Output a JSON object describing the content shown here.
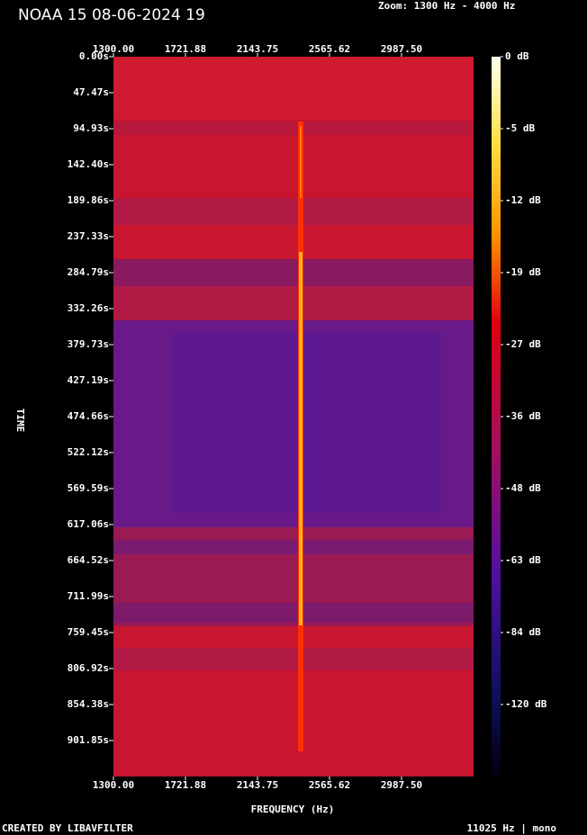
{
  "chart_data": {
    "type": "spectrogram",
    "title": "NOAA 15 08-06-2024 19",
    "zoom_label": "Zoom: 1300 Hz - 4000 Hz",
    "x_label": "FREQUENCY (Hz)",
    "y_label": "TIME",
    "xlim": [
      1300,
      3409.375
    ],
    "xticks": [
      {
        "value": 1300,
        "label": "1300.00"
      },
      {
        "value": 1721.88,
        "label": "1721.88"
      },
      {
        "value": 2143.75,
        "label": "2143.75"
      },
      {
        "value": 2565.62,
        "label": "2565.62"
      },
      {
        "value": 2987.5,
        "label": "2987.50"
      }
    ],
    "ylim": [
      0,
      949.32
    ],
    "yticks": [
      {
        "value": 0,
        "label": "0.00s"
      },
      {
        "value": 47.47,
        "label": "47.47s"
      },
      {
        "value": 94.93,
        "label": "94.93s"
      },
      {
        "value": 142.4,
        "label": "142.40s"
      },
      {
        "value": 189.86,
        "label": "189.86s"
      },
      {
        "value": 237.33,
        "label": "237.33s"
      },
      {
        "value": 284.79,
        "label": "284.79s"
      },
      {
        "value": 332.26,
        "label": "332.26s"
      },
      {
        "value": 379.73,
        "label": "379.73s"
      },
      {
        "value": 427.19,
        "label": "427.19s"
      },
      {
        "value": 474.66,
        "label": "474.66s"
      },
      {
        "value": 522.12,
        "label": "522.12s"
      },
      {
        "value": 569.59,
        "label": "569.59s"
      },
      {
        "value": 617.06,
        "label": "617.06s"
      },
      {
        "value": 664.52,
        "label": "664.52s"
      },
      {
        "value": 711.99,
        "label": "711.99s"
      },
      {
        "value": 759.45,
        "label": "759.45s"
      },
      {
        "value": 806.92,
        "label": "806.92s"
      },
      {
        "value": 854.38,
        "label": "854.38s"
      },
      {
        "value": 901.85,
        "label": "901.85s"
      }
    ],
    "cticks": [
      {
        "value": 0,
        "label": "0 dB"
      },
      {
        "value": -5,
        "label": "-5 dB"
      },
      {
        "value": -12,
        "label": "-12 dB"
      },
      {
        "value": -19,
        "label": "-19 dB"
      },
      {
        "value": -27,
        "label": "-27 dB"
      },
      {
        "value": -36,
        "label": "-36 dB"
      },
      {
        "value": -48,
        "label": "-48 dB"
      },
      {
        "value": -63,
        "label": "-63 dB"
      },
      {
        "value": -84,
        "label": "-84 dB"
      },
      {
        "value": -120,
        "label": "-120 dB"
      }
    ],
    "footer_left": "CREATED BY LIBAVFILTER",
    "footer_right": "11025 Hz | mono"
  }
}
